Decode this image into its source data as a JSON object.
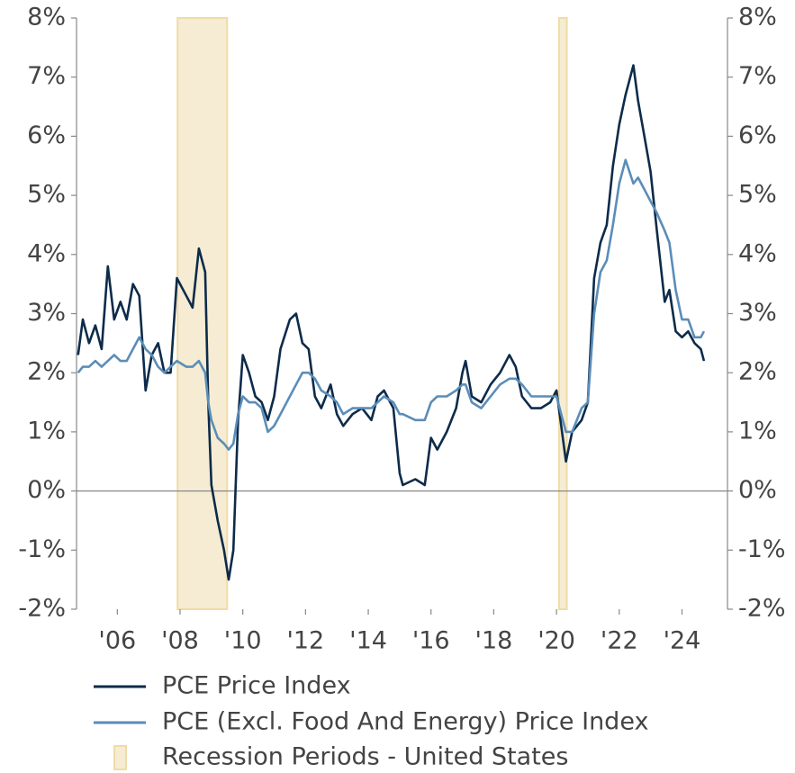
{
  "chart_data": {
    "type": "line",
    "x": [
      2004.75,
      2004.9,
      2005.1,
      2005.3,
      2005.5,
      2005.7,
      2005.9,
      2006.1,
      2006.3,
      2006.5,
      2006.7,
      2006.9,
      2007.1,
      2007.3,
      2007.5,
      2007.7,
      2007.9,
      2008.2,
      2008.4,
      2008.6,
      2008.8,
      2008.9,
      2009.0,
      2009.2,
      2009.4,
      2009.55,
      2009.7,
      2009.85,
      2010.0,
      2010.2,
      2010.4,
      2010.6,
      2010.8,
      2011.0,
      2011.2,
      2011.5,
      2011.7,
      2011.9,
      2012.1,
      2012.3,
      2012.5,
      2012.8,
      2013.0,
      2013.2,
      2013.5,
      2013.8,
      2014.1,
      2014.3,
      2014.5,
      2014.8,
      2015.0,
      2015.1,
      2015.5,
      2015.8,
      2016.0,
      2016.2,
      2016.5,
      2016.8,
      2017.0,
      2017.1,
      2017.3,
      2017.6,
      2017.9,
      2018.2,
      2018.5,
      2018.7,
      2018.9,
      2019.2,
      2019.5,
      2019.8,
      2020.0,
      2020.3,
      2020.5,
      2020.8,
      2021.0,
      2021.2,
      2021.4,
      2021.6,
      2021.8,
      2022.0,
      2022.2,
      2022.45,
      2022.6,
      2022.8,
      2023.0,
      2023.2,
      2023.45,
      2023.6,
      2023.8,
      2024.0,
      2024.2,
      2024.4,
      2024.6,
      2024.7
    ],
    "series": [
      {
        "name": "PCE Price Index",
        "color": "#0d2b4a",
        "values": [
          2.3,
          2.9,
          2.5,
          2.8,
          2.4,
          3.8,
          2.9,
          3.2,
          2.9,
          3.5,
          3.3,
          1.7,
          2.3,
          2.5,
          2.0,
          2.0,
          3.6,
          3.3,
          3.1,
          4.1,
          3.7,
          1.5,
          0.1,
          -0.5,
          -1.0,
          -1.5,
          -1.0,
          1.2,
          2.3,
          2.0,
          1.6,
          1.5,
          1.2,
          1.6,
          2.4,
          2.9,
          3.0,
          2.5,
          2.4,
          1.6,
          1.4,
          1.8,
          1.3,
          1.1,
          1.3,
          1.4,
          1.2,
          1.6,
          1.7,
          1.4,
          0.3,
          0.1,
          0.2,
          0.1,
          0.9,
          0.7,
          1.0,
          1.4,
          2.0,
          2.2,
          1.6,
          1.5,
          1.8,
          2.0,
          2.3,
          2.1,
          1.6,
          1.4,
          1.4,
          1.5,
          1.7,
          0.5,
          1.0,
          1.2,
          1.5,
          3.6,
          4.2,
          4.5,
          5.5,
          6.2,
          6.7,
          7.2,
          6.6,
          6.0,
          5.4,
          4.4,
          3.2,
          3.4,
          2.7,
          2.6,
          2.7,
          2.5,
          2.4,
          2.2
        ]
      },
      {
        "name": "PCE (Excl. Food And Energy) Price Index",
        "color": "#5b8db8",
        "values": [
          2.0,
          2.1,
          2.1,
          2.2,
          2.1,
          2.2,
          2.3,
          2.2,
          2.2,
          2.4,
          2.6,
          2.4,
          2.3,
          2.1,
          2.0,
          2.1,
          2.2,
          2.1,
          2.1,
          2.2,
          2.0,
          1.5,
          1.2,
          0.9,
          0.8,
          0.7,
          0.8,
          1.3,
          1.6,
          1.5,
          1.5,
          1.4,
          1.0,
          1.1,
          1.3,
          1.6,
          1.8,
          2.0,
          2.0,
          1.9,
          1.7,
          1.6,
          1.5,
          1.3,
          1.4,
          1.4,
          1.4,
          1.5,
          1.6,
          1.5,
          1.3,
          1.3,
          1.2,
          1.2,
          1.5,
          1.6,
          1.6,
          1.7,
          1.8,
          1.8,
          1.5,
          1.4,
          1.6,
          1.8,
          1.9,
          1.9,
          1.8,
          1.6,
          1.6,
          1.6,
          1.6,
          1.0,
          1.0,
          1.4,
          1.5,
          3.0,
          3.7,
          3.9,
          4.5,
          5.2,
          5.6,
          5.2,
          5.3,
          5.1,
          4.9,
          4.7,
          4.4,
          4.2,
          3.4,
          2.9,
          2.9,
          2.6,
          2.6,
          2.7
        ]
      }
    ],
    "recessions": {
      "name": "Recession Periods - United States",
      "color": "#f5ecd3",
      "periods": [
        [
          2007.92,
          2009.5
        ],
        [
          2020.08,
          2020.33
        ]
      ]
    },
    "xlim": [
      2004.7,
      2025.45
    ],
    "xticks": [
      {
        "value": 2006,
        "label": "'06"
      },
      {
        "value": 2008,
        "label": "'08"
      },
      {
        "value": 2010,
        "label": "'10"
      },
      {
        "value": 2012,
        "label": "'12"
      },
      {
        "value": 2014,
        "label": "'14"
      },
      {
        "value": 2016,
        "label": "'16"
      },
      {
        "value": 2018,
        "label": "'18"
      },
      {
        "value": 2020,
        "label": "'20"
      },
      {
        "value": 2022,
        "label": "'22"
      },
      {
        "value": 2024,
        "label": "'24"
      }
    ],
    "ylim": [
      -2,
      8
    ],
    "yticks": [
      {
        "value": -2,
        "label": "-2%"
      },
      {
        "value": -1,
        "label": "-1%"
      },
      {
        "value": 0,
        "label": "0%"
      },
      {
        "value": 1,
        "label": "1%"
      },
      {
        "value": 2,
        "label": "2%"
      },
      {
        "value": 3,
        "label": "3%"
      },
      {
        "value": 4,
        "label": "4%"
      },
      {
        "value": 5,
        "label": "5%"
      },
      {
        "value": 6,
        "label": "6%"
      },
      {
        "value": 7,
        "label": "7%"
      },
      {
        "value": 8,
        "label": "8%"
      }
    ],
    "y2lim": [
      -2,
      8
    ],
    "y2ticks": [
      {
        "value": -2,
        "label": "-2%"
      },
      {
        "value": -1,
        "label": "-1%"
      },
      {
        "value": 0,
        "label": "0%"
      },
      {
        "value": 1,
        "label": "1%"
      },
      {
        "value": 2,
        "label": "2%"
      },
      {
        "value": 3,
        "label": "3%"
      },
      {
        "value": 4,
        "label": "4%"
      },
      {
        "value": 5,
        "label": "5%"
      },
      {
        "value": 6,
        "label": "6%"
      },
      {
        "value": 7,
        "label": "7%"
      },
      {
        "value": 8,
        "label": "8%"
      }
    ]
  }
}
